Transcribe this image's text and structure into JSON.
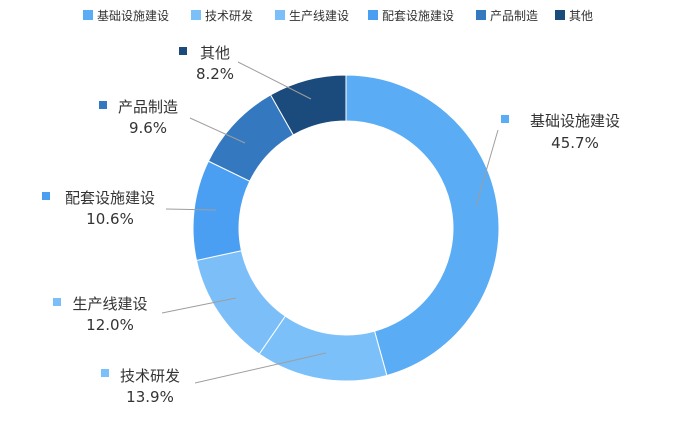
{
  "chart_data": {
    "type": "pie",
    "donut": true,
    "title": "",
    "legend_position": "top",
    "categories": [
      "基础设施建设",
      "技术研发",
      "生产线建设",
      "配套设施建设",
      "产品制造",
      "其他"
    ],
    "values": [
      45.7,
      13.9,
      12.0,
      10.6,
      9.6,
      8.2
    ],
    "value_labels": [
      "45.7%",
      "13.9%",
      "12.0%",
      "10.6%",
      "9.6%",
      "8.2%"
    ],
    "colors": [
      "#5aacf5",
      "#7cc0fa",
      "#7cbff8",
      "#4a9ff2",
      "#3478c0",
      "#1b4a7c"
    ]
  }
}
